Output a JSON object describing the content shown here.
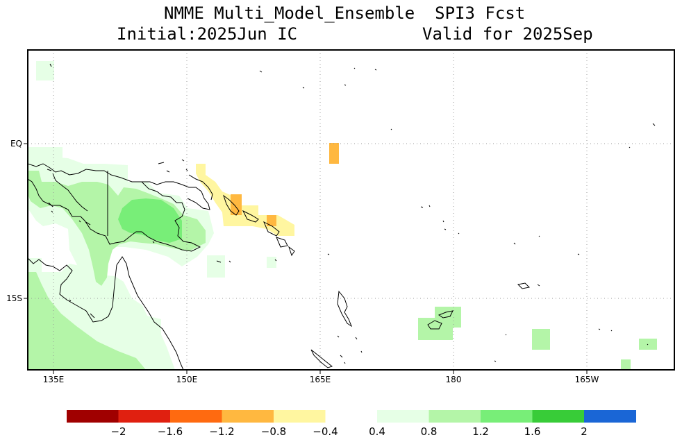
{
  "title": {
    "line1": "NMME Multi_Model_Ensemble  SPI3 Fcst",
    "initial": "Initial:2025Jun IC",
    "valid": "Valid for 2025Sep"
  },
  "map": {
    "lon_labels": [
      "135E",
      "150E",
      "165E",
      "180",
      "165W"
    ],
    "lat_labels": [
      "EQ",
      "15S"
    ],
    "grid": "dotted",
    "extent": {
      "lon": [
        134,
        205
      ],
      "lat": [
        -20.5,
        9
      ]
    }
  },
  "legend": {
    "colors": [
      "#a00000",
      "#e02010",
      "#ff6a10",
      "#ffb840",
      "#fff6a0",
      "#ffffff",
      "#e6ffe6",
      "#b4f5a8",
      "#78ee78",
      "#38cc38",
      "#1a66d6"
    ],
    "tick_labels": [
      "−2",
      "−1.6",
      "−1.2",
      "−0.8",
      "−0.4",
      "0.4",
      "0.8",
      "1.2",
      "1.6",
      "2"
    ]
  },
  "colors": {
    "wet_light": "#e6ffe6",
    "wet_medium": "#b4f5a8",
    "wet_strong": "#78ee78",
    "dry_light": "#fff6a0",
    "dry_medium": "#ffb840"
  }
}
